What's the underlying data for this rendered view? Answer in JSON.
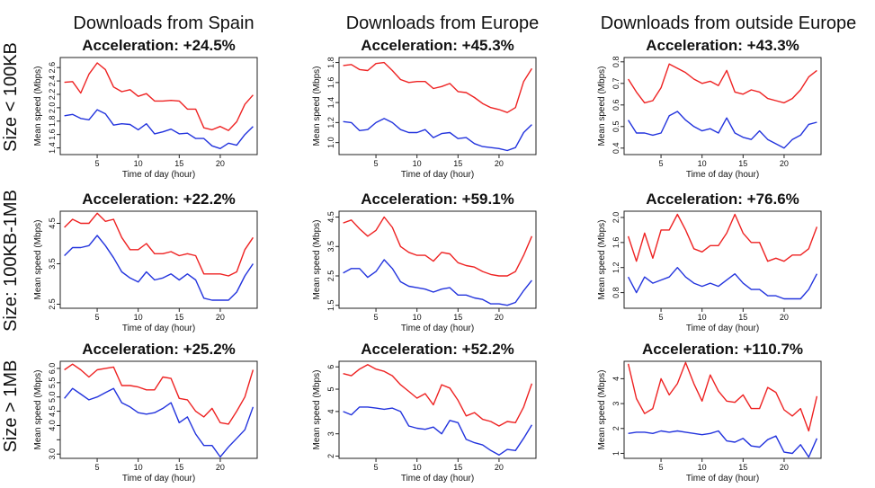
{
  "column_titles": [
    "Downloads from Spain",
    "Downloads from Europe",
    "Downloads from outside Europe"
  ],
  "row_titles": [
    "Size < 100KB",
    "Size: 100KB-1MB",
    "Size > 1MB"
  ],
  "colors": {
    "red_series": "#ee2222",
    "blue_series": "#2233dd"
  },
  "chart_data": [
    {
      "type": "line",
      "title": "Acceleration: +24.5%",
      "xlabel": "Time of day (hour)",
      "ylabel": "Mean speed (Mbps)",
      "xlim": [
        0.5,
        24.5
      ],
      "xticks": [
        5,
        10,
        15,
        20
      ],
      "ylim": [
        1.3,
        2.75
      ],
      "yticks": [
        1.4,
        1.6,
        1.8,
        2.0,
        2.2,
        2.4,
        2.6
      ],
      "ytick_labels": [
        "1.4",
        "1.6",
        "1.8",
        "2.0",
        "2.2",
        "2.4",
        "2.6"
      ],
      "x": [
        1,
        2,
        3,
        4,
        5,
        6,
        7,
        8,
        9,
        10,
        11,
        12,
        13,
        14,
        15,
        16,
        17,
        18,
        19,
        20,
        21,
        22,
        23,
        24
      ],
      "series": [
        {
          "values": [
            2.38,
            2.39,
            2.22,
            2.5,
            2.67,
            2.57,
            2.31,
            2.24,
            2.27,
            2.17,
            2.21,
            2.1,
            2.1,
            2.11,
            2.1,
            1.98,
            1.98,
            1.7,
            1.67,
            1.72,
            1.66,
            1.79,
            2.05,
            2.19
          ]
        },
        {
          "values": [
            1.88,
            1.9,
            1.84,
            1.82,
            1.97,
            1.91,
            1.74,
            1.76,
            1.75,
            1.67,
            1.76,
            1.61,
            1.64,
            1.68,
            1.61,
            1.62,
            1.54,
            1.54,
            1.43,
            1.39,
            1.47,
            1.44,
            1.6,
            1.72
          ]
        }
      ]
    },
    {
      "type": "line",
      "title": "Acceleration: +45.3%",
      "xlabel": "Time of day (hour)",
      "ylabel": "Mean speed (Mbps)",
      "xlim": [
        0.5,
        24.5
      ],
      "xticks": [
        5,
        10,
        15,
        20
      ],
      "ylim": [
        0.88,
        1.85
      ],
      "yticks": [
        1.0,
        1.2,
        1.4,
        1.6,
        1.8
      ],
      "ytick_labels": [
        "1.0",
        "1.2",
        "1.4",
        "1.6",
        "1.8"
      ],
      "x": [
        1,
        2,
        3,
        4,
        5,
        6,
        7,
        8,
        9,
        10,
        11,
        12,
        13,
        14,
        15,
        16,
        17,
        18,
        19,
        20,
        21,
        22,
        23,
        24
      ],
      "series": [
        {
          "values": [
            1.77,
            1.78,
            1.73,
            1.72,
            1.79,
            1.8,
            1.72,
            1.63,
            1.6,
            1.61,
            1.61,
            1.54,
            1.56,
            1.59,
            1.51,
            1.5,
            1.45,
            1.39,
            1.35,
            1.33,
            1.3,
            1.35,
            1.61,
            1.74
          ]
        },
        {
          "values": [
            1.21,
            1.2,
            1.12,
            1.13,
            1.2,
            1.24,
            1.2,
            1.13,
            1.1,
            1.1,
            1.13,
            1.05,
            1.09,
            1.1,
            1.04,
            1.05,
            0.99,
            0.96,
            0.95,
            0.94,
            0.92,
            0.95,
            1.1,
            1.18
          ]
        }
      ]
    },
    {
      "type": "line",
      "title": "Acceleration: +43.3%",
      "xlabel": "Time of day (hour)",
      "ylabel": "Mean speed (Mbps)",
      "xlim": [
        0.5,
        24.5
      ],
      "xticks": [
        5,
        10,
        15,
        20
      ],
      "ylim": [
        0.37,
        0.82
      ],
      "yticks": [
        0.4,
        0.5,
        0.6,
        0.7,
        0.8
      ],
      "ytick_labels": [
        "0.4",
        "0.5",
        "0.6",
        "0.7",
        "0.8"
      ],
      "x": [
        1,
        2,
        3,
        4,
        5,
        6,
        7,
        8,
        9,
        10,
        11,
        12,
        13,
        14,
        15,
        16,
        17,
        18,
        19,
        20,
        21,
        22,
        23,
        24
      ],
      "series": [
        {
          "values": [
            0.72,
            0.66,
            0.61,
            0.62,
            0.68,
            0.79,
            0.77,
            0.75,
            0.72,
            0.7,
            0.71,
            0.69,
            0.76,
            0.66,
            0.65,
            0.67,
            0.66,
            0.63,
            0.62,
            0.61,
            0.63,
            0.67,
            0.73,
            0.76
          ]
        },
        {
          "values": [
            0.53,
            0.47,
            0.47,
            0.46,
            0.47,
            0.55,
            0.57,
            0.53,
            0.5,
            0.48,
            0.49,
            0.47,
            0.54,
            0.47,
            0.45,
            0.44,
            0.48,
            0.44,
            0.42,
            0.4,
            0.44,
            0.46,
            0.51,
            0.52
          ]
        }
      ]
    },
    {
      "type": "line",
      "title": "Acceleration: +22.2%",
      "xlabel": "Time of day (hour)",
      "ylabel": "Mean speed (Mbps)",
      "xlim": [
        0.5,
        24.5
      ],
      "xticks": [
        5,
        10,
        15,
        20
      ],
      "ylim": [
        2.4,
        4.8
      ],
      "yticks": [
        2.5,
        3.5,
        4.5
      ],
      "ytick_labels": [
        "2.5",
        "3.5",
        "4.5"
      ],
      "x": [
        1,
        2,
        3,
        4,
        5,
        6,
        7,
        8,
        9,
        10,
        11,
        12,
        13,
        14,
        15,
        16,
        17,
        18,
        19,
        20,
        21,
        22,
        23,
        24
      ],
      "series": [
        {
          "values": [
            4.4,
            4.6,
            4.5,
            4.5,
            4.75,
            4.55,
            4.6,
            4.15,
            3.85,
            3.85,
            4.0,
            3.75,
            3.75,
            3.8,
            3.7,
            3.75,
            3.7,
            3.25,
            3.25,
            3.25,
            3.2,
            3.3,
            3.85,
            4.15
          ]
        },
        {
          "values": [
            3.7,
            3.9,
            3.9,
            3.95,
            4.2,
            3.95,
            3.65,
            3.3,
            3.15,
            3.05,
            3.3,
            3.1,
            3.15,
            3.25,
            3.1,
            3.25,
            3.1,
            2.65,
            2.6,
            2.6,
            2.6,
            2.8,
            3.2,
            3.5
          ]
        }
      ]
    },
    {
      "type": "line",
      "title": "Acceleration: +59.1%",
      "xlabel": "Time of day (hour)",
      "ylabel": "Mean speed (Mbps)",
      "xlim": [
        0.5,
        24.5
      ],
      "xticks": [
        5,
        10,
        15,
        20
      ],
      "ylim": [
        1.4,
        4.7
      ],
      "yticks": [
        1.5,
        2.5,
        3.5,
        4.5
      ],
      "ytick_labels": [
        "1.5",
        "2.5",
        "3.5",
        "4.5"
      ],
      "x": [
        1,
        2,
        3,
        4,
        5,
        6,
        7,
        8,
        9,
        10,
        11,
        12,
        13,
        14,
        15,
        16,
        17,
        18,
        19,
        20,
        21,
        22,
        23,
        24
      ],
      "series": [
        {
          "values": [
            4.3,
            4.4,
            4.1,
            3.85,
            4.05,
            4.5,
            4.15,
            3.5,
            3.3,
            3.2,
            3.2,
            3.0,
            3.3,
            3.25,
            2.95,
            2.85,
            2.8,
            2.65,
            2.55,
            2.5,
            2.5,
            2.65,
            3.2,
            3.85
          ]
        },
        {
          "values": [
            2.6,
            2.75,
            2.75,
            2.45,
            2.65,
            3.05,
            2.75,
            2.3,
            2.15,
            2.1,
            2.05,
            1.95,
            2.05,
            2.1,
            1.85,
            1.85,
            1.75,
            1.7,
            1.55,
            1.55,
            1.5,
            1.6,
            2.0,
            2.35
          ]
        }
      ]
    },
    {
      "type": "line",
      "title": "Acceleration: +76.6%",
      "xlabel": "Time of day (hour)",
      "ylabel": "Mean speed (Mbps)",
      "xlim": [
        0.5,
        24.5
      ],
      "xticks": [
        5,
        10,
        15,
        20
      ],
      "ylim": [
        0.55,
        2.1
      ],
      "yticks": [
        0.8,
        1.2,
        1.6,
        2.0
      ],
      "ytick_labels": [
        "0.8",
        "1.2",
        "1.6",
        "2.0"
      ],
      "x": [
        1,
        2,
        3,
        4,
        5,
        6,
        7,
        8,
        9,
        10,
        11,
        12,
        13,
        14,
        15,
        16,
        17,
        18,
        19,
        20,
        21,
        22,
        23,
        24
      ],
      "series": [
        {
          "values": [
            1.7,
            1.3,
            1.75,
            1.35,
            1.8,
            1.8,
            2.05,
            1.8,
            1.5,
            1.45,
            1.55,
            1.55,
            1.75,
            2.05,
            1.75,
            1.6,
            1.6,
            1.3,
            1.35,
            1.3,
            1.4,
            1.4,
            1.5,
            1.85
          ]
        },
        {
          "values": [
            1.05,
            0.8,
            1.05,
            0.95,
            1.0,
            1.05,
            1.2,
            1.05,
            0.95,
            0.9,
            0.95,
            0.9,
            1.0,
            1.1,
            0.95,
            0.85,
            0.85,
            0.75,
            0.75,
            0.7,
            0.7,
            0.7,
            0.85,
            1.1
          ]
        }
      ]
    },
    {
      "type": "line",
      "title": "Acceleration: +25.2%",
      "xlabel": "Time of day (hour)",
      "ylabel": "Mean speed (Mbps)",
      "xlim": [
        0.5,
        24.5
      ],
      "xticks": [
        5,
        10,
        15,
        20
      ],
      "ylim": [
        2.85,
        6.25
      ],
      "yticks": [
        3.0,
        3.5,
        4.0,
        4.5,
        5.0,
        5.5,
        6.0
      ],
      "ytick_labels": [
        "3.0",
        "",
        "4.0",
        "4.5",
        "5.0",
        "5.5",
        "6.0"
      ],
      "x": [
        1,
        2,
        3,
        4,
        5,
        6,
        7,
        8,
        9,
        10,
        11,
        12,
        13,
        14,
        15,
        16,
        17,
        18,
        19,
        20,
        21,
        22,
        23,
        24
      ],
      "series": [
        {
          "values": [
            5.95,
            6.15,
            5.95,
            5.7,
            5.95,
            6.0,
            6.05,
            5.4,
            5.4,
            5.35,
            5.25,
            5.25,
            5.7,
            5.65,
            4.95,
            4.9,
            4.5,
            4.3,
            4.6,
            4.1,
            4.05,
            4.5,
            5.0,
            5.95
          ]
        },
        {
          "values": [
            4.95,
            5.3,
            5.1,
            4.9,
            5.0,
            5.15,
            5.3,
            4.8,
            4.65,
            4.45,
            4.4,
            4.45,
            4.6,
            4.8,
            4.1,
            4.3,
            3.7,
            3.3,
            3.3,
            2.9,
            3.25,
            3.55,
            3.85,
            4.65
          ]
        }
      ]
    },
    {
      "type": "line",
      "title": "Acceleration: +52.2%",
      "xlabel": "Time of day (hour)",
      "ylabel": "Mean speed (Mbps)",
      "xlim": [
        0.5,
        24.5
      ],
      "xticks": [
        5,
        10,
        15,
        20
      ],
      "ylim": [
        1.9,
        6.25
      ],
      "yticks": [
        2,
        3,
        4,
        5,
        6
      ],
      "ytick_labels": [
        "2",
        "3",
        "4",
        "5",
        "6"
      ],
      "x": [
        1,
        2,
        3,
        4,
        5,
        6,
        7,
        8,
        9,
        10,
        11,
        12,
        13,
        14,
        15,
        16,
        17,
        18,
        19,
        20,
        21,
        22,
        23,
        24
      ],
      "series": [
        {
          "values": [
            5.7,
            5.6,
            5.9,
            6.1,
            5.9,
            5.8,
            5.6,
            5.2,
            4.9,
            4.6,
            4.8,
            4.3,
            5.2,
            5.05,
            4.5,
            3.8,
            3.95,
            3.65,
            3.55,
            3.35,
            3.55,
            3.5,
            4.2,
            5.25
          ]
        },
        {
          "values": [
            4.0,
            3.85,
            4.2,
            4.2,
            4.15,
            4.1,
            4.15,
            4.0,
            3.35,
            3.25,
            3.2,
            3.3,
            3.0,
            3.6,
            3.5,
            2.75,
            2.6,
            2.5,
            2.25,
            2.05,
            2.3,
            2.25,
            2.8,
            3.4
          ]
        }
      ]
    },
    {
      "type": "line",
      "title": "Acceleration: +110.7%",
      "xlabel": "Time of day (hour)",
      "ylabel": "Mean speed (Mbps)",
      "xlim": [
        0.5,
        24.5
      ],
      "xticks": [
        5,
        10,
        15,
        20
      ],
      "ylim": [
        0.8,
        4.7
      ],
      "yticks": [
        1,
        2,
        3,
        4
      ],
      "ytick_labels": [
        "1",
        "2",
        "3",
        "4"
      ],
      "x": [
        1,
        2,
        3,
        4,
        5,
        6,
        7,
        8,
        9,
        10,
        11,
        12,
        13,
        14,
        15,
        16,
        17,
        18,
        19,
        20,
        21,
        22,
        23,
        24
      ],
      "series": [
        {
          "values": [
            4.6,
            3.2,
            2.6,
            2.8,
            4.0,
            3.35,
            3.8,
            4.65,
            3.8,
            3.1,
            4.15,
            3.5,
            3.1,
            3.05,
            3.35,
            2.8,
            2.8,
            3.65,
            3.45,
            2.75,
            2.5,
            2.8,
            1.9,
            3.3
          ]
        },
        {
          "values": [
            1.8,
            1.85,
            1.85,
            1.8,
            1.9,
            1.85,
            1.9,
            1.85,
            1.8,
            1.75,
            1.8,
            1.9,
            1.5,
            1.45,
            1.6,
            1.3,
            1.25,
            1.55,
            1.7,
            1.05,
            1.0,
            1.35,
            0.85,
            1.6
          ]
        }
      ]
    }
  ]
}
